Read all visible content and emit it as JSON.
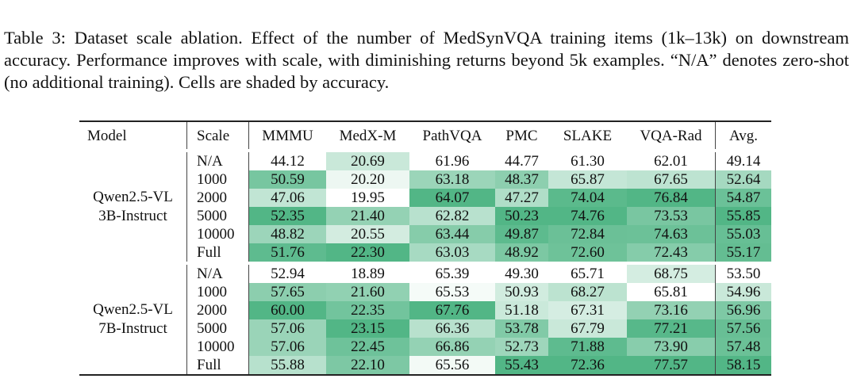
{
  "caption": "Table 3: Dataset scale ablation. Effect of the number of MedSynVQA training items (1k–13k) on downstream accuracy. Performance improves with scale, with diminishing returns beyond 5k examples. “N/A” denotes zero-shot (no additional training). Cells are shaded by accuracy.",
  "shade_color_max": "#52b686",
  "shade_color_min": "#ffffff",
  "headers": [
    "Model",
    "Scale",
    "MMMU",
    "MedX-M",
    "PathVQA",
    "PMC",
    "SLAKE",
    "VQA-Rad",
    "Avg."
  ],
  "groups": [
    {
      "model_line1": "Qwen2.5-VL",
      "model_line2": "3B-Instruct",
      "rows": [
        {
          "scale": "N/A",
          "values": [
            "44.12",
            "20.69",
            "61.96",
            "44.77",
            "61.30",
            "62.01",
            "49.14"
          ]
        },
        {
          "scale": "1000",
          "values": [
            "50.59",
            "20.20",
            "63.18",
            "48.37",
            "65.87",
            "67.65",
            "52.64"
          ]
        },
        {
          "scale": "2000",
          "values": [
            "47.06",
            "19.95",
            "64.07",
            "47.27",
            "74.04",
            "76.84",
            "54.87"
          ]
        },
        {
          "scale": "5000",
          "values": [
            "52.35",
            "21.40",
            "62.82",
            "50.23",
            "74.76",
            "73.53",
            "55.85"
          ]
        },
        {
          "scale": "10000",
          "values": [
            "48.82",
            "20.55",
            "63.44",
            "49.87",
            "72.84",
            "74.63",
            "55.03"
          ]
        },
        {
          "scale": "Full",
          "values": [
            "51.76",
            "22.30",
            "63.03",
            "48.92",
            "72.60",
            "72.43",
            "55.17"
          ]
        }
      ]
    },
    {
      "model_line1": "Qwen2.5-VL",
      "model_line2": "7B-Instruct",
      "rows": [
        {
          "scale": "N/A",
          "values": [
            "52.94",
            "18.89",
            "65.39",
            "49.30",
            "65.71",
            "68.75",
            "53.50"
          ]
        },
        {
          "scale": "1000",
          "values": [
            "57.65",
            "21.60",
            "65.53",
            "50.93",
            "68.27",
            "65.81",
            "54.96"
          ]
        },
        {
          "scale": "2000",
          "values": [
            "60.00",
            "22.35",
            "67.76",
            "51.18",
            "67.31",
            "73.16",
            "56.96"
          ]
        },
        {
          "scale": "5000",
          "values": [
            "57.06",
            "23.15",
            "66.36",
            "53.78",
            "67.79",
            "77.21",
            "57.56"
          ]
        },
        {
          "scale": "10000",
          "values": [
            "57.06",
            "22.45",
            "66.86",
            "52.73",
            "71.88",
            "73.90",
            "57.48"
          ]
        },
        {
          "scale": "Full",
          "values": [
            "55.88",
            "22.10",
            "65.56",
            "55.43",
            "72.36",
            "77.57",
            "58.15"
          ]
        }
      ]
    }
  ]
}
